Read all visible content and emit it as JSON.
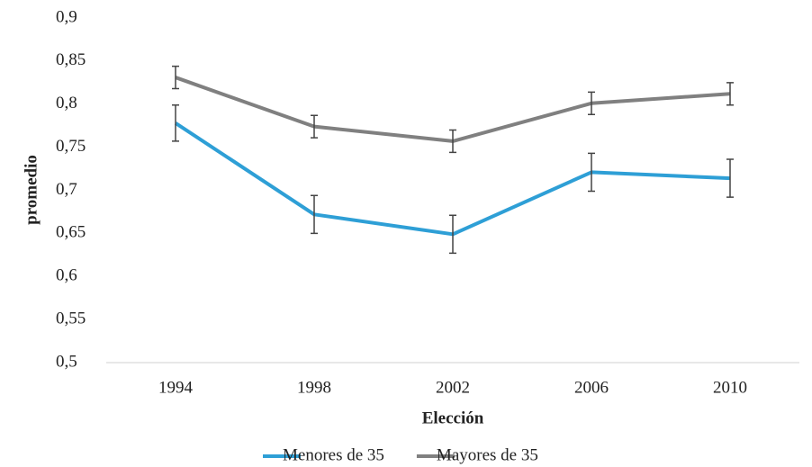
{
  "chart_data": {
    "type": "line",
    "categories": [
      "1994",
      "1998",
      "2002",
      "2006",
      "2010"
    ],
    "series": [
      {
        "name": "Menores de 35",
        "color": "#2e9fd6",
        "values": [
          0.778,
          0.672,
          0.649,
          0.721,
          0.714
        ],
        "errors": [
          0.021,
          0.022,
          0.022,
          0.022,
          0.022
        ]
      },
      {
        "name": "Mayores de 35",
        "color": "#808080",
        "values": [
          0.831,
          0.774,
          0.757,
          0.801,
          0.812
        ],
        "errors": [
          0.013,
          0.013,
          0.013,
          0.013,
          0.013
        ]
      }
    ],
    "ylim": [
      0.5,
      0.9
    ],
    "yticks": [
      {
        "value": 0.5,
        "label": "0,5"
      },
      {
        "value": 0.55,
        "label": "0,55"
      },
      {
        "value": 0.6,
        "label": "0,6"
      },
      {
        "value": 0.65,
        "label": "0,65"
      },
      {
        "value": 0.7,
        "label": "0,7"
      },
      {
        "value": 0.75,
        "label": "0,75"
      },
      {
        "value": 0.8,
        "label": "0,8"
      },
      {
        "value": 0.85,
        "label": "0,85"
      },
      {
        "value": 0.9,
        "label": "0,9"
      }
    ],
    "xlabel": "Elección",
    "ylabel": "promedio",
    "legend": "bottom",
    "grid": false
  }
}
